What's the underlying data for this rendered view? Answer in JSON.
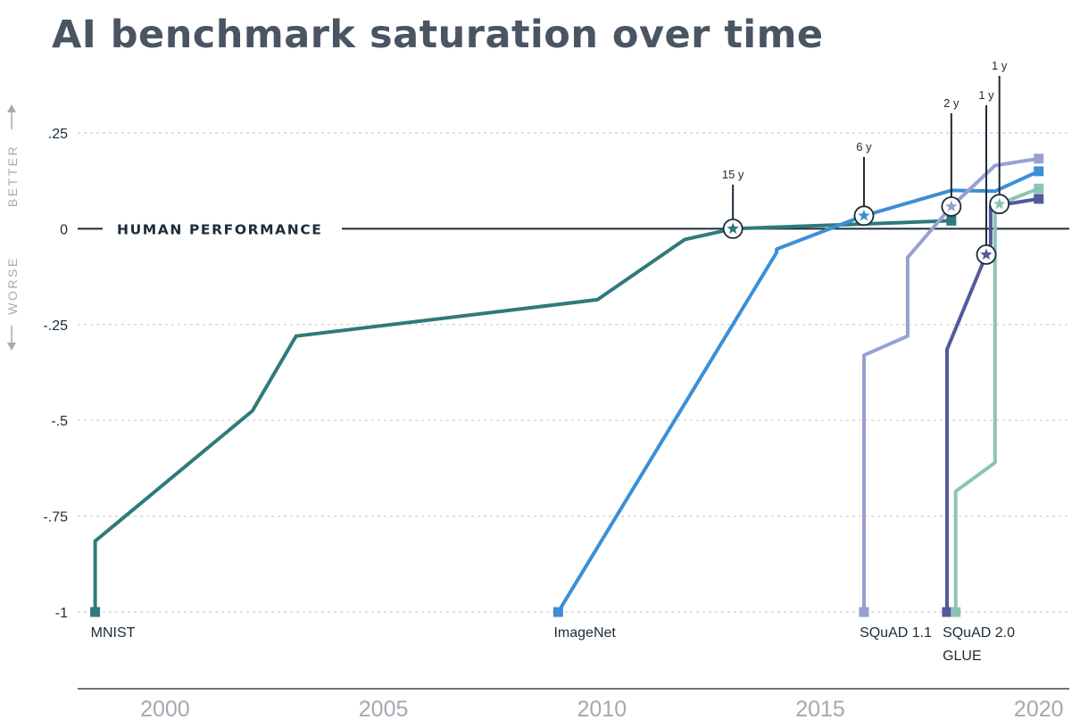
{
  "chart_data": {
    "type": "line",
    "title": "AI benchmark saturation over time",
    "reference_line_label": "HUMAN PERFORMANCE",
    "side_labels": {
      "better": "BETTER",
      "worse": "WORSE"
    },
    "xlim": [
      1998.0,
      2020.7
    ],
    "ylim": [
      -1,
      0.3
    ],
    "x_ticks": [
      {
        "value": 2000,
        "label": "2000"
      },
      {
        "value": 2005,
        "label": "2005"
      },
      {
        "value": 2010,
        "label": "2010"
      },
      {
        "value": 2015,
        "label": "2015"
      },
      {
        "value": 2020,
        "label": "2020"
      }
    ],
    "y_ticks": [
      {
        "value": 0.25,
        "label": ".25"
      },
      {
        "value": 0,
        "label": "0"
      },
      {
        "value": -0.25,
        "label": "-.25"
      },
      {
        "value": -0.5,
        "label": "-.5"
      },
      {
        "value": -0.75,
        "label": "-.75"
      },
      {
        "value": -1,
        "label": "-1"
      }
    ],
    "grid": "horizontal dashed",
    "series": [
      {
        "name": "MNIST",
        "color": "#2f7a7a",
        "points": [
          [
            1998.4,
            -1
          ],
          [
            1998.4,
            -0.815
          ],
          [
            2002.0,
            -0.475
          ],
          [
            2003.0,
            -0.28
          ],
          [
            2009.9,
            -0.185
          ],
          [
            2011.9,
            -0.028
          ],
          [
            2013.0,
            0
          ],
          [
            2018.0,
            0.021
          ]
        ],
        "crossing": {
          "x": 2013.0,
          "label": "15 y"
        }
      },
      {
        "name": "ImageNet",
        "color": "#3b8fd6",
        "points": [
          [
            2009.0,
            -1
          ],
          [
            2014.0,
            -0.062
          ],
          [
            2014.0,
            -0.053
          ],
          [
            2016.0,
            0.034
          ],
          [
            2018.0,
            0.1
          ],
          [
            2019.0,
            0.098
          ],
          [
            2020.0,
            0.15
          ]
        ],
        "crossing": {
          "x": 2016.0,
          "label": "6 y"
        }
      },
      {
        "name": "SQuAD 1.1",
        "color": "#97a0d2",
        "points": [
          [
            2016.0,
            -1
          ],
          [
            2016.0,
            -0.33
          ],
          [
            2017.0,
            -0.28
          ],
          [
            2017.0,
            -0.075
          ],
          [
            2018.0,
            0.058
          ],
          [
            2019.0,
            0.165
          ],
          [
            2020.0,
            0.183
          ]
        ],
        "crossing": {
          "x": 2018.0,
          "label": "2 y"
        }
      },
      {
        "name": "SQuAD 2.0",
        "color": "#525a9b",
        "points": [
          [
            2017.9,
            -1
          ],
          [
            2017.9,
            -0.315
          ],
          [
            2018.9,
            -0.04
          ],
          [
            2018.9,
            0.058
          ],
          [
            2020.0,
            0.078
          ]
        ],
        "crossing": {
          "x": 2018.8,
          "label": "1 y"
        }
      },
      {
        "name": "GLUE",
        "color": "#8cc3b7",
        "points": [
          [
            2018.1,
            -1
          ],
          [
            2018.1,
            -0.685
          ],
          [
            2019.0,
            -0.61
          ],
          [
            2019.0,
            0
          ],
          [
            2019.0,
            0.06
          ],
          [
            2020.0,
            0.105
          ]
        ],
        "crossing": {
          "x": 2019.1,
          "label": "1 y"
        }
      }
    ],
    "dataset_labels": [
      {
        "name": "MNIST",
        "x": 1998.3,
        "row": 0
      },
      {
        "name": "ImageNet",
        "x": 2008.9,
        "row": 0
      },
      {
        "name": "SQuAD 1.1",
        "x": 2015.9,
        "row": 0
      },
      {
        "name": "SQuAD 2.0",
        "x": 2017.8,
        "row": 0
      },
      {
        "name": "GLUE",
        "x": 2017.8,
        "row": 1
      }
    ]
  }
}
